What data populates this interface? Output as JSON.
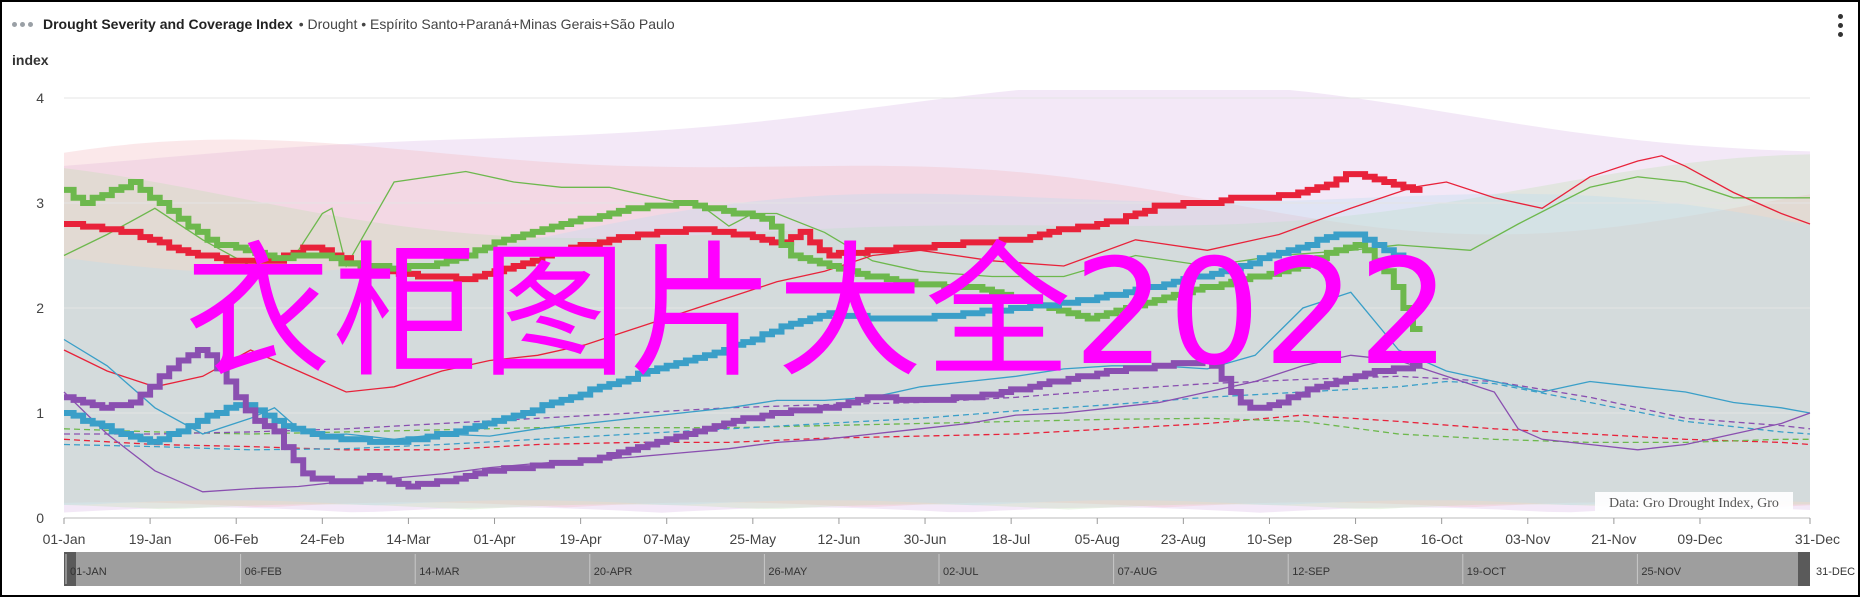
{
  "header": {
    "title": "Drought Severity and Coverage Index",
    "separator": "•",
    "subtitle": "Drought • Espírito Santo+Paraná+Minas Gerais+São Paulo"
  },
  "credit": "Data: Gro Drought Index, Gro",
  "watermark": "衣柜图片大全2022",
  "navigator": {
    "labels": [
      "01-JAN",
      "06-FEB",
      "14-MAR",
      "20-APR",
      "26-MAY",
      "02-JUL",
      "07-AUG",
      "12-SEP",
      "19-OCT",
      "25-NOV",
      "31-DEC"
    ]
  },
  "chart_data": {
    "type": "line",
    "ylabel": "index",
    "ylim": [
      0,
      4
    ],
    "yticks": [
      0,
      1,
      2,
      3,
      4
    ],
    "x_unit": "day-of-year",
    "xlim": [
      1,
      366
    ],
    "xticks": [
      {
        "day": 1,
        "label": "01-Jan"
      },
      {
        "day": 19,
        "label": "19-Jan"
      },
      {
        "day": 37,
        "label": "06-Feb"
      },
      {
        "day": 55,
        "label": "24-Feb"
      },
      {
        "day": 73,
        "label": "14-Mar"
      },
      {
        "day": 91,
        "label": "01-Apr"
      },
      {
        "day": 109,
        "label": "19-Apr"
      },
      {
        "day": 127,
        "label": "07-May"
      },
      {
        "day": 145,
        "label": "25-May"
      },
      {
        "day": 163,
        "label": "12-Jun"
      },
      {
        "day": 181,
        "label": "30-Jun"
      },
      {
        "day": 199,
        "label": "18-Jul"
      },
      {
        "day": 217,
        "label": "05-Aug"
      },
      {
        "day": 235,
        "label": "23-Aug"
      },
      {
        "day": 253,
        "label": "10-Sep"
      },
      {
        "day": 271,
        "label": "28-Sep"
      },
      {
        "day": 289,
        "label": "16-Oct"
      },
      {
        "day": 307,
        "label": "03-Nov"
      },
      {
        "day": 325,
        "label": "21-Nov"
      },
      {
        "day": 343,
        "label": "09-Dec"
      },
      {
        "day": 366,
        "label": "31-Dec"
      }
    ],
    "grid": true,
    "legend": "none",
    "series": [
      {
        "color": "#e8223a",
        "style": "thick-current",
        "x": [
          1,
          15,
          25,
          35,
          45,
          52,
          58,
          65,
          75,
          85,
          95,
          105,
          115,
          125,
          135,
          142,
          150,
          155,
          160,
          170,
          185,
          200,
          210,
          220,
          230,
          240,
          245,
          250,
          258,
          265,
          270,
          275,
          283
        ],
        "y": [
          2.8,
          2.72,
          2.55,
          2.45,
          2.45,
          2.6,
          2.48,
          2.38,
          2.3,
          2.28,
          2.4,
          2.55,
          2.65,
          2.72,
          2.75,
          2.7,
          2.6,
          2.72,
          2.5,
          2.55,
          2.6,
          2.65,
          2.75,
          2.82,
          2.98,
          3.0,
          3.05,
          3.05,
          3.08,
          3.18,
          3.3,
          3.22,
          3.12
        ]
      },
      {
        "color": "#6db84d",
        "style": "thick-current",
        "x": [
          1,
          5,
          10,
          15,
          25,
          32,
          45,
          55,
          60,
          70,
          80,
          90,
          100,
          110,
          120,
          130,
          140,
          148,
          152,
          160,
          170,
          180,
          190,
          200,
          210,
          215,
          220,
          230,
          240,
          250,
          260,
          266,
          272,
          278,
          283
        ],
        "y": [
          3.12,
          3.0,
          3.1,
          3.2,
          2.85,
          2.62,
          2.48,
          2.5,
          2.42,
          2.38,
          2.42,
          2.6,
          2.75,
          2.85,
          2.95,
          3.0,
          2.92,
          2.85,
          2.5,
          2.42,
          2.3,
          2.22,
          2.2,
          2.1,
          1.95,
          1.9,
          1.95,
          2.1,
          2.2,
          2.3,
          2.42,
          2.55,
          2.6,
          2.3,
          1.8
        ]
      },
      {
        "color": "#3a9fc8",
        "style": "thick-current",
        "x": [
          1,
          10,
          20,
          30,
          38,
          45,
          52,
          60,
          70,
          80,
          90,
          100,
          110,
          120,
          130,
          140,
          150,
          160,
          170,
          180,
          190,
          200,
          210,
          220,
          230,
          240,
          250,
          260,
          265,
          270,
          275,
          283
        ],
        "y": [
          1.0,
          0.85,
          0.72,
          0.95,
          1.1,
          0.92,
          0.8,
          0.75,
          0.72,
          0.8,
          0.92,
          1.05,
          1.2,
          1.35,
          1.48,
          1.62,
          1.8,
          1.95,
          1.9,
          1.9,
          1.95,
          2.0,
          2.05,
          2.12,
          2.22,
          2.32,
          2.45,
          2.58,
          2.68,
          2.72,
          2.6,
          2.4
        ]
      },
      {
        "color": "#8a4fb0",
        "style": "thick-current",
        "x": [
          1,
          8,
          15,
          20,
          25,
          30,
          35,
          40,
          45,
          48,
          52,
          60,
          66,
          72,
          80,
          90,
          100,
          110,
          120,
          130,
          140,
          150,
          160,
          170,
          180,
          190,
          200,
          210,
          220,
          230,
          240,
          245,
          248,
          252,
          260,
          270,
          283
        ],
        "y": [
          1.15,
          1.05,
          1.1,
          1.3,
          1.5,
          1.62,
          1.3,
          0.95,
          0.82,
          0.6,
          0.38,
          0.35,
          0.4,
          0.3,
          0.35,
          0.45,
          0.5,
          0.55,
          0.65,
          0.8,
          0.92,
          1.0,
          1.05,
          1.15,
          1.12,
          1.15,
          1.22,
          1.32,
          1.4,
          1.45,
          1.5,
          1.2,
          1.05,
          1.05,
          1.2,
          1.35,
          1.45
        ]
      },
      {
        "color": "#6db84d",
        "style": "thin-upper",
        "x": [
          1,
          10,
          20,
          30,
          40,
          50,
          55,
          57,
          60,
          70,
          85,
          95,
          105,
          115,
          125,
          135,
          140,
          145,
          150,
          160,
          170,
          180,
          195,
          210,
          225,
          240,
          255,
          270,
          280,
          295,
          305,
          320,
          330,
          340,
          350,
          360,
          366
        ],
        "y": [
          2.5,
          2.7,
          2.95,
          2.65,
          2.4,
          2.55,
          2.9,
          2.95,
          2.4,
          3.2,
          3.3,
          3.2,
          3.15,
          3.15,
          3.05,
          2.95,
          2.78,
          2.9,
          2.9,
          2.72,
          2.45,
          2.35,
          2.3,
          2.3,
          2.5,
          2.4,
          2.5,
          2.55,
          2.6,
          2.55,
          2.8,
          3.15,
          3.25,
          3.2,
          3.05,
          3.05,
          3.05
        ]
      },
      {
        "color": "#e8223a",
        "style": "thin-upper",
        "x": [
          1,
          10,
          20,
          30,
          40,
          50,
          60,
          70,
          80,
          90,
          100,
          110,
          120,
          130,
          140,
          150,
          160,
          170,
          180,
          195,
          210,
          225,
          240,
          255,
          270,
          283,
          290,
          300,
          310,
          320,
          330,
          335,
          340,
          350,
          360,
          366
        ],
        "y": [
          1.6,
          1.4,
          1.25,
          1.35,
          1.6,
          1.4,
          1.2,
          1.25,
          1.4,
          1.5,
          1.55,
          1.65,
          1.8,
          1.95,
          2.1,
          2.25,
          2.35,
          2.5,
          2.55,
          2.45,
          2.4,
          2.65,
          2.55,
          2.7,
          2.95,
          3.15,
          3.2,
          3.05,
          2.95,
          3.25,
          3.4,
          3.45,
          3.35,
          3.1,
          2.9,
          2.8
        ]
      },
      {
        "color": "#3a9fc8",
        "style": "thin-upper",
        "x": [
          1,
          10,
          20,
          30,
          40,
          45,
          50,
          55,
          60,
          70,
          80,
          90,
          100,
          110,
          120,
          130,
          140,
          150,
          160,
          170,
          180,
          190,
          200,
          210,
          220,
          230,
          240,
          250,
          260,
          270,
          280,
          290,
          300,
          310,
          320,
          330,
          340,
          350,
          360,
          366
        ],
        "y": [
          1.7,
          1.45,
          1.05,
          0.8,
          0.95,
          1.05,
          0.85,
          0.78,
          0.8,
          0.75,
          0.8,
          0.78,
          0.85,
          0.9,
          0.95,
          1.0,
          1.05,
          1.12,
          1.12,
          1.15,
          1.25,
          1.3,
          1.35,
          1.42,
          1.45,
          1.45,
          1.42,
          1.55,
          2.0,
          2.15,
          1.6,
          1.4,
          1.3,
          1.2,
          1.3,
          1.25,
          1.2,
          1.1,
          1.05,
          1.0
        ]
      },
      {
        "color": "#8a4fb0",
        "style": "thin-upper",
        "x": [
          1,
          10,
          20,
          25,
          30,
          40,
          50,
          60,
          70,
          80,
          90,
          100,
          110,
          120,
          130,
          140,
          150,
          160,
          170,
          180,
          190,
          200,
          210,
          220,
          230,
          240,
          250,
          260,
          270,
          280,
          290,
          300,
          305,
          310,
          320,
          330,
          340,
          350,
          360,
          366
        ],
        "y": [
          1.2,
          0.8,
          0.45,
          0.35,
          0.25,
          0.28,
          0.3,
          0.35,
          0.38,
          0.42,
          0.48,
          0.52,
          0.55,
          0.58,
          0.62,
          0.66,
          0.72,
          0.75,
          0.8,
          0.85,
          0.9,
          0.98,
          1.0,
          1.05,
          1.1,
          1.2,
          1.3,
          1.45,
          1.55,
          1.5,
          1.35,
          1.2,
          0.85,
          0.75,
          0.7,
          0.65,
          0.7,
          0.8,
          0.9,
          1.0
        ]
      },
      {
        "color": "#e8223a",
        "style": "dashed",
        "x": [
          1,
          20,
          40,
          60,
          80,
          100,
          120,
          140,
          160,
          180,
          200,
          220,
          240,
          260,
          280,
          300,
          320,
          340,
          360,
          366
        ],
        "y": [
          0.75,
          0.7,
          0.68,
          0.65,
          0.65,
          0.7,
          0.72,
          0.72,
          0.76,
          0.78,
          0.8,
          0.85,
          0.9,
          0.98,
          0.92,
          0.85,
          0.8,
          0.75,
          0.72,
          0.7
        ]
      },
      {
        "color": "#6db84d",
        "style": "dashed",
        "x": [
          1,
          20,
          40,
          60,
          80,
          100,
          120,
          140,
          160,
          180,
          200,
          220,
          240,
          260,
          280,
          300,
          320,
          340,
          360,
          366
        ],
        "y": [
          0.85,
          0.82,
          0.8,
          0.82,
          0.84,
          0.86,
          0.86,
          0.86,
          0.88,
          0.9,
          0.92,
          0.94,
          0.95,
          0.92,
          0.8,
          0.75,
          0.72,
          0.72,
          0.75,
          0.75
        ]
      },
      {
        "color": "#3a9fc8",
        "style": "dashed",
        "x": [
          1,
          20,
          40,
          60,
          80,
          100,
          120,
          140,
          160,
          180,
          200,
          220,
          240,
          260,
          280,
          290,
          300,
          320,
          340,
          360,
          366
        ],
        "y": [
          0.7,
          0.68,
          0.65,
          0.66,
          0.7,
          0.75,
          0.8,
          0.85,
          0.9,
          0.95,
          1.02,
          1.08,
          1.15,
          1.2,
          1.25,
          1.3,
          1.28,
          1.1,
          0.92,
          0.82,
          0.8
        ]
      },
      {
        "color": "#8a4fb0",
        "style": "dashed",
        "x": [
          1,
          20,
          40,
          60,
          80,
          100,
          120,
          140,
          160,
          180,
          200,
          220,
          240,
          260,
          280,
          300,
          320,
          340,
          360,
          366
        ],
        "y": [
          0.8,
          0.8,
          0.82,
          0.85,
          0.9,
          0.95,
          1.0,
          1.05,
          1.08,
          1.1,
          1.15,
          1.22,
          1.28,
          1.32,
          1.35,
          1.3,
          1.15,
          0.95,
          0.88,
          0.85
        ]
      }
    ]
  }
}
